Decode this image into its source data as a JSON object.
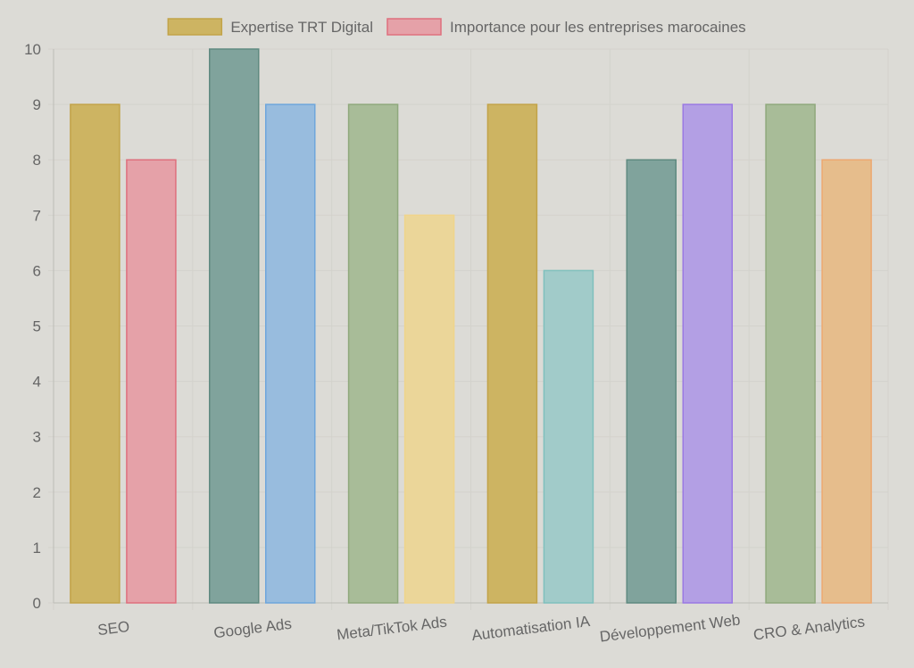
{
  "chart_data": {
    "type": "bar",
    "title": "",
    "xlabel": "",
    "ylabel": "",
    "categories": [
      "SEO",
      "Google Ads",
      "Meta/TikTok Ads",
      "Automatisation IA",
      "Développement Web",
      "CRO & Analytics"
    ],
    "series": [
      {
        "name": "Expertise TRT Digital",
        "values": [
          9,
          10,
          9,
          9,
          8,
          9
        ],
        "legend_color": "#cdb462",
        "colors": [
          "#cdb462",
          "#80a39c",
          "#a8bc98",
          "#cdb462",
          "#80a39c",
          "#a8bc98"
        ],
        "border_colors": [
          "#c2a348",
          "#5f8a80",
          "#8fa87c",
          "#c2a348",
          "#5f8a80",
          "#8fa87c"
        ]
      },
      {
        "name": "Importance pour les entreprises marocaines",
        "values": [
          8,
          9,
          7,
          6,
          9,
          8
        ],
        "legend_color": "#e5a1a8",
        "colors": [
          "#e5a1a8",
          "#98bcde",
          "#ebd699",
          "#a1cbc9",
          "#b39fe4",
          "#e6bd8c"
        ],
        "border_colors": [
          "#de6f7d",
          "#6ea6dc",
          "#f0d48a",
          "#7fc0bd",
          "#9a78e3",
          "#eda870"
        ]
      }
    ],
    "ylim": [
      0,
      10
    ],
    "yticks": [
      "0",
      "1",
      "2",
      "3",
      "4",
      "5",
      "6",
      "7",
      "8",
      "9",
      "10"
    ],
    "grid": true,
    "legend_position": "top-center"
  }
}
